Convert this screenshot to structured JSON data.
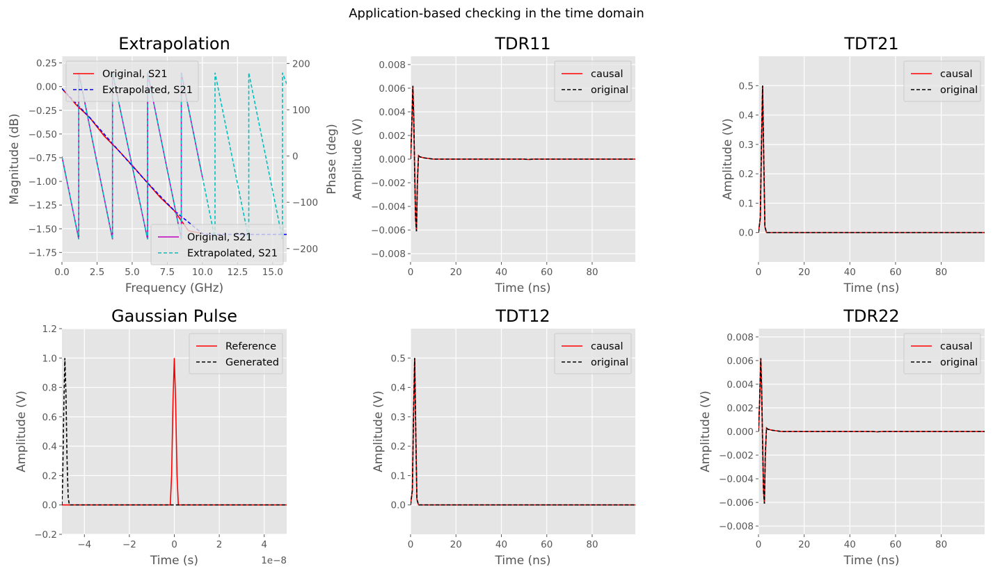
{
  "suptitle": "Application-based checking in the time domain",
  "colors": {
    "background": "#e5e5e5",
    "grid": "#ffffff",
    "text": "#555555",
    "red": "#ff0000",
    "black": "#000000",
    "blue": "#0000ff",
    "magenta": "#bf00bf",
    "cyan": "#00bfbf"
  },
  "chart_data": [
    {
      "id": "extrapolation",
      "type": "line",
      "title": "Extrapolation",
      "xlabel": "Frequency (GHz)",
      "ylabel": "Magnitude (dB)",
      "y2label": "Phase (deg)",
      "xlim": [
        0,
        16
      ],
      "ylim": [
        -1.85,
        0.32
      ],
      "y2lim": [
        -200,
        200
      ],
      "xticks": [
        "0.0",
        "2.5",
        "5.0",
        "7.5",
        "10.0",
        "12.5",
        "15.0"
      ],
      "xtick_values": [
        0,
        2.5,
        5,
        7.5,
        10,
        12.5,
        15
      ],
      "yticks": [
        "0.25",
        "0.00",
        "−0.25",
        "−0.50",
        "−0.75",
        "−1.00",
        "−1.25",
        "−1.50",
        "−1.75"
      ],
      "ytick_values": [
        0.25,
        0,
        -0.25,
        -0.5,
        -0.75,
        -1.0,
        -1.25,
        -1.5,
        -1.75
      ],
      "y2ticks": [
        "200",
        "100",
        "0",
        "−100",
        "−200"
      ],
      "y2tick_values": [
        200,
        100,
        0,
        -100,
        -200
      ],
      "legend_magnitude": [
        "Original, S21",
        "Extrapolated, S21"
      ],
      "legend_phase": [
        "Original, S21",
        "Extrapolated, S21"
      ],
      "series": [
        {
          "name": "Original, S21",
          "axis": "magnitude",
          "style": "solid",
          "x": [
            0,
            1,
            2,
            3,
            4,
            5,
            6,
            7,
            8,
            9,
            10
          ],
          "values": [
            -0.02,
            -0.19,
            -0.33,
            -0.52,
            -0.67,
            -0.83,
            -1.0,
            -1.17,
            -1.31,
            -1.52,
            -1.55
          ]
        },
        {
          "name": "Extrapolated, S21",
          "axis": "magnitude",
          "style": "dashed",
          "x": [
            0,
            2,
            4,
            6,
            8,
            10,
            10.5,
            12,
            14,
            16
          ],
          "values": [
            -0.02,
            -0.33,
            -0.67,
            -1.0,
            -1.31,
            -1.55,
            -1.56,
            -1.56,
            -1.56,
            -1.56
          ]
        },
        {
          "name": "Original, S21",
          "axis": "phase",
          "style": "solid",
          "x": [
            0,
            1.2,
            1.2,
            3.6,
            3.6,
            6.1,
            6.1,
            8.5,
            8.5,
            10
          ],
          "values": [
            -1,
            -180,
            180,
            -180,
            180,
            -180,
            180,
            -180,
            180,
            -46
          ]
        },
        {
          "name": "Extrapolated, S21",
          "axis": "phase",
          "style": "dashed",
          "x": [
            0,
            1.2,
            1.2,
            3.6,
            3.6,
            6.1,
            6.1,
            8.5,
            8.5,
            10.9,
            10.9,
            13.3,
            13.3,
            15.7,
            15.7,
            16
          ],
          "values": [
            -1,
            -180,
            180,
            -180,
            180,
            -180,
            180,
            -180,
            180,
            -180,
            180,
            -180,
            180,
            -180,
            180,
            156
          ]
        }
      ]
    },
    {
      "id": "tdr11",
      "type": "line",
      "title": "TDR11",
      "xlabel": "Time (ns)",
      "ylabel": "Amplitude (V)",
      "xlim": [
        0,
        99
      ],
      "ylim": [
        -0.0087,
        0.0087
      ],
      "xticks": [
        "0",
        "20",
        "40",
        "60",
        "80"
      ],
      "xtick_values": [
        0,
        20,
        40,
        60,
        80
      ],
      "yticks": [
        "0.008",
        "0.006",
        "0.004",
        "0.002",
        "0.000",
        "−0.002",
        "−0.004",
        "−0.006",
        "−0.008"
      ],
      "ytick_values": [
        0.008,
        0.006,
        0.004,
        0.002,
        0,
        -0.002,
        -0.004,
        -0.006,
        -0.008
      ],
      "legend": [
        "causal",
        "original"
      ],
      "series": [
        {
          "name": "causal",
          "x": [
            0,
            0.5,
            1.0,
            1.4,
            1.8,
            2.2,
            2.6,
            3.0,
            3.5,
            4.0,
            6,
            10,
            20,
            50,
            52,
            54,
            99
          ],
          "values": [
            0,
            0.0025,
            0.0062,
            0.0035,
            -0.001,
            -0.005,
            -0.0061,
            -0.002,
            0.0003,
            0.0002,
            0.0001,
            0,
            0,
            0,
            -3e-05,
            0,
            0
          ]
        },
        {
          "name": "original",
          "x": [
            0,
            0.5,
            1.0,
            1.4,
            1.8,
            2.2,
            2.6,
            3.0,
            3.5,
            4.0,
            6,
            10,
            20,
            50,
            52,
            54,
            99
          ],
          "values": [
            0,
            0.0025,
            0.0062,
            0.0035,
            -0.001,
            -0.005,
            -0.0061,
            -0.002,
            0.0003,
            0.0002,
            0.0001,
            0,
            0,
            0,
            -3e-05,
            0,
            0
          ]
        }
      ]
    },
    {
      "id": "tdt21",
      "type": "line",
      "title": "TDT21",
      "xlabel": "Time (ns)",
      "ylabel": "Amplitude (V)",
      "xlim": [
        0,
        99
      ],
      "ylim": [
        -0.1,
        0.6
      ],
      "xticks": [
        "0",
        "20",
        "40",
        "60",
        "80"
      ],
      "xtick_values": [
        0,
        20,
        40,
        60,
        80
      ],
      "yticks": [
        "0.5",
        "0.4",
        "0.3",
        "0.2",
        "0.1",
        "0.0"
      ],
      "ytick_values": [
        0.5,
        0.4,
        0.3,
        0.2,
        0.1,
        0
      ],
      "legend": [
        "causal",
        "original"
      ],
      "series": [
        {
          "name": "causal",
          "x": [
            0,
            0.8,
            1.3,
            1.8,
            2.3,
            2.8,
            3.5,
            99
          ],
          "values": [
            0,
            0.05,
            0.3,
            0.5,
            0.25,
            0.02,
            0,
            0
          ]
        },
        {
          "name": "original",
          "x": [
            0,
            0.8,
            1.3,
            1.8,
            2.3,
            2.8,
            3.5,
            99
          ],
          "values": [
            0,
            0.05,
            0.3,
            0.5,
            0.25,
            0.02,
            0,
            0
          ]
        }
      ]
    },
    {
      "id": "gaussian",
      "type": "line",
      "title": "Gaussian Pulse",
      "xlabel": "Time (s)",
      "ylabel": "Amplitude (V)",
      "offset_text": "1e−8",
      "xlim": [
        -5,
        5
      ],
      "ylim": [
        -0.2,
        1.2
      ],
      "xticks": [
        "−4",
        "−2",
        "0",
        "2",
        "4"
      ],
      "xtick_values": [
        -4,
        -2,
        0,
        2,
        4
      ],
      "yticks": [
        "1.2",
        "1.0",
        "0.8",
        "0.6",
        "0.4",
        "0.2",
        "0.0",
        "−0.2"
      ],
      "ytick_values": [
        1.2,
        1.0,
        0.8,
        0.6,
        0.4,
        0.2,
        0,
        -0.2
      ],
      "legend": [
        "Reference",
        "Generated"
      ],
      "series": [
        {
          "name": "Reference",
          "x": [
            -5,
            -0.18,
            -0.12,
            -0.06,
            0,
            0.06,
            0.12,
            0.18,
            5
          ],
          "values": [
            0,
            0,
            0.2,
            0.7,
            1.0,
            0.7,
            0.2,
            0,
            0
          ]
        },
        {
          "name": "Generated",
          "x": [
            -5,
            -4.97,
            -4.92,
            -4.87,
            -4.82,
            -4.77,
            -4.72,
            -4.67,
            5
          ],
          "values": [
            0,
            0.15,
            0.65,
            1.0,
            0.75,
            0.3,
            0.05,
            0,
            0
          ]
        }
      ]
    },
    {
      "id": "tdt12",
      "type": "line",
      "title": "TDT12",
      "xlabel": "Time (ns)",
      "ylabel": "Amplitude (V)",
      "xlim": [
        0,
        99
      ],
      "ylim": [
        -0.1,
        0.6
      ],
      "xticks": [
        "0",
        "20",
        "40",
        "60",
        "80"
      ],
      "xtick_values": [
        0,
        20,
        40,
        60,
        80
      ],
      "yticks": [
        "0.5",
        "0.4",
        "0.3",
        "0.2",
        "0.1",
        "0.0"
      ],
      "ytick_values": [
        0.5,
        0.4,
        0.3,
        0.2,
        0.1,
        0
      ],
      "legend": [
        "causal",
        "original"
      ],
      "series": [
        {
          "name": "causal",
          "x": [
            0,
            0.8,
            1.3,
            1.8,
            2.3,
            2.8,
            3.5,
            99
          ],
          "values": [
            0,
            0.05,
            0.3,
            0.5,
            0.25,
            0.02,
            0,
            0
          ]
        },
        {
          "name": "original",
          "x": [
            0,
            0.8,
            1.3,
            1.8,
            2.3,
            2.8,
            3.5,
            99
          ],
          "values": [
            0,
            0.05,
            0.3,
            0.5,
            0.25,
            0.02,
            0,
            0
          ]
        }
      ]
    },
    {
      "id": "tdr22",
      "type": "line",
      "title": "TDR22",
      "xlabel": "Time (ns)",
      "ylabel": "Amplitude (V)",
      "xlim": [
        0,
        99
      ],
      "ylim": [
        -0.0087,
        0.0087
      ],
      "xticks": [
        "0",
        "20",
        "40",
        "60",
        "80"
      ],
      "xtick_values": [
        0,
        20,
        40,
        60,
        80
      ],
      "yticks": [
        "0.008",
        "0.006",
        "0.004",
        "0.002",
        "0.000",
        "−0.002",
        "−0.004",
        "−0.006",
        "−0.008"
      ],
      "ytick_values": [
        0.008,
        0.006,
        0.004,
        0.002,
        0,
        -0.002,
        -0.004,
        -0.006,
        -0.008
      ],
      "legend": [
        "causal",
        "original"
      ],
      "series": [
        {
          "name": "causal",
          "x": [
            0,
            0.5,
            1.0,
            1.4,
            1.8,
            2.2,
            2.6,
            3.0,
            3.5,
            4.0,
            6,
            10,
            20,
            50,
            52,
            54,
            99
          ],
          "values": [
            0,
            0.0025,
            0.0062,
            0.0035,
            -0.001,
            -0.005,
            -0.0061,
            -0.002,
            0.0003,
            0.0002,
            0.0001,
            0,
            0,
            0,
            -3e-05,
            0,
            0
          ]
        },
        {
          "name": "original",
          "x": [
            0,
            0.5,
            1.0,
            1.4,
            1.8,
            2.2,
            2.6,
            3.0,
            3.5,
            4.0,
            6,
            10,
            20,
            50,
            52,
            54,
            99
          ],
          "values": [
            0,
            0.0025,
            0.0062,
            0.0035,
            -0.001,
            -0.005,
            -0.0061,
            -0.002,
            0.0003,
            0.0002,
            0.0001,
            0,
            0,
            0,
            -3e-05,
            0,
            0
          ]
        }
      ]
    }
  ]
}
